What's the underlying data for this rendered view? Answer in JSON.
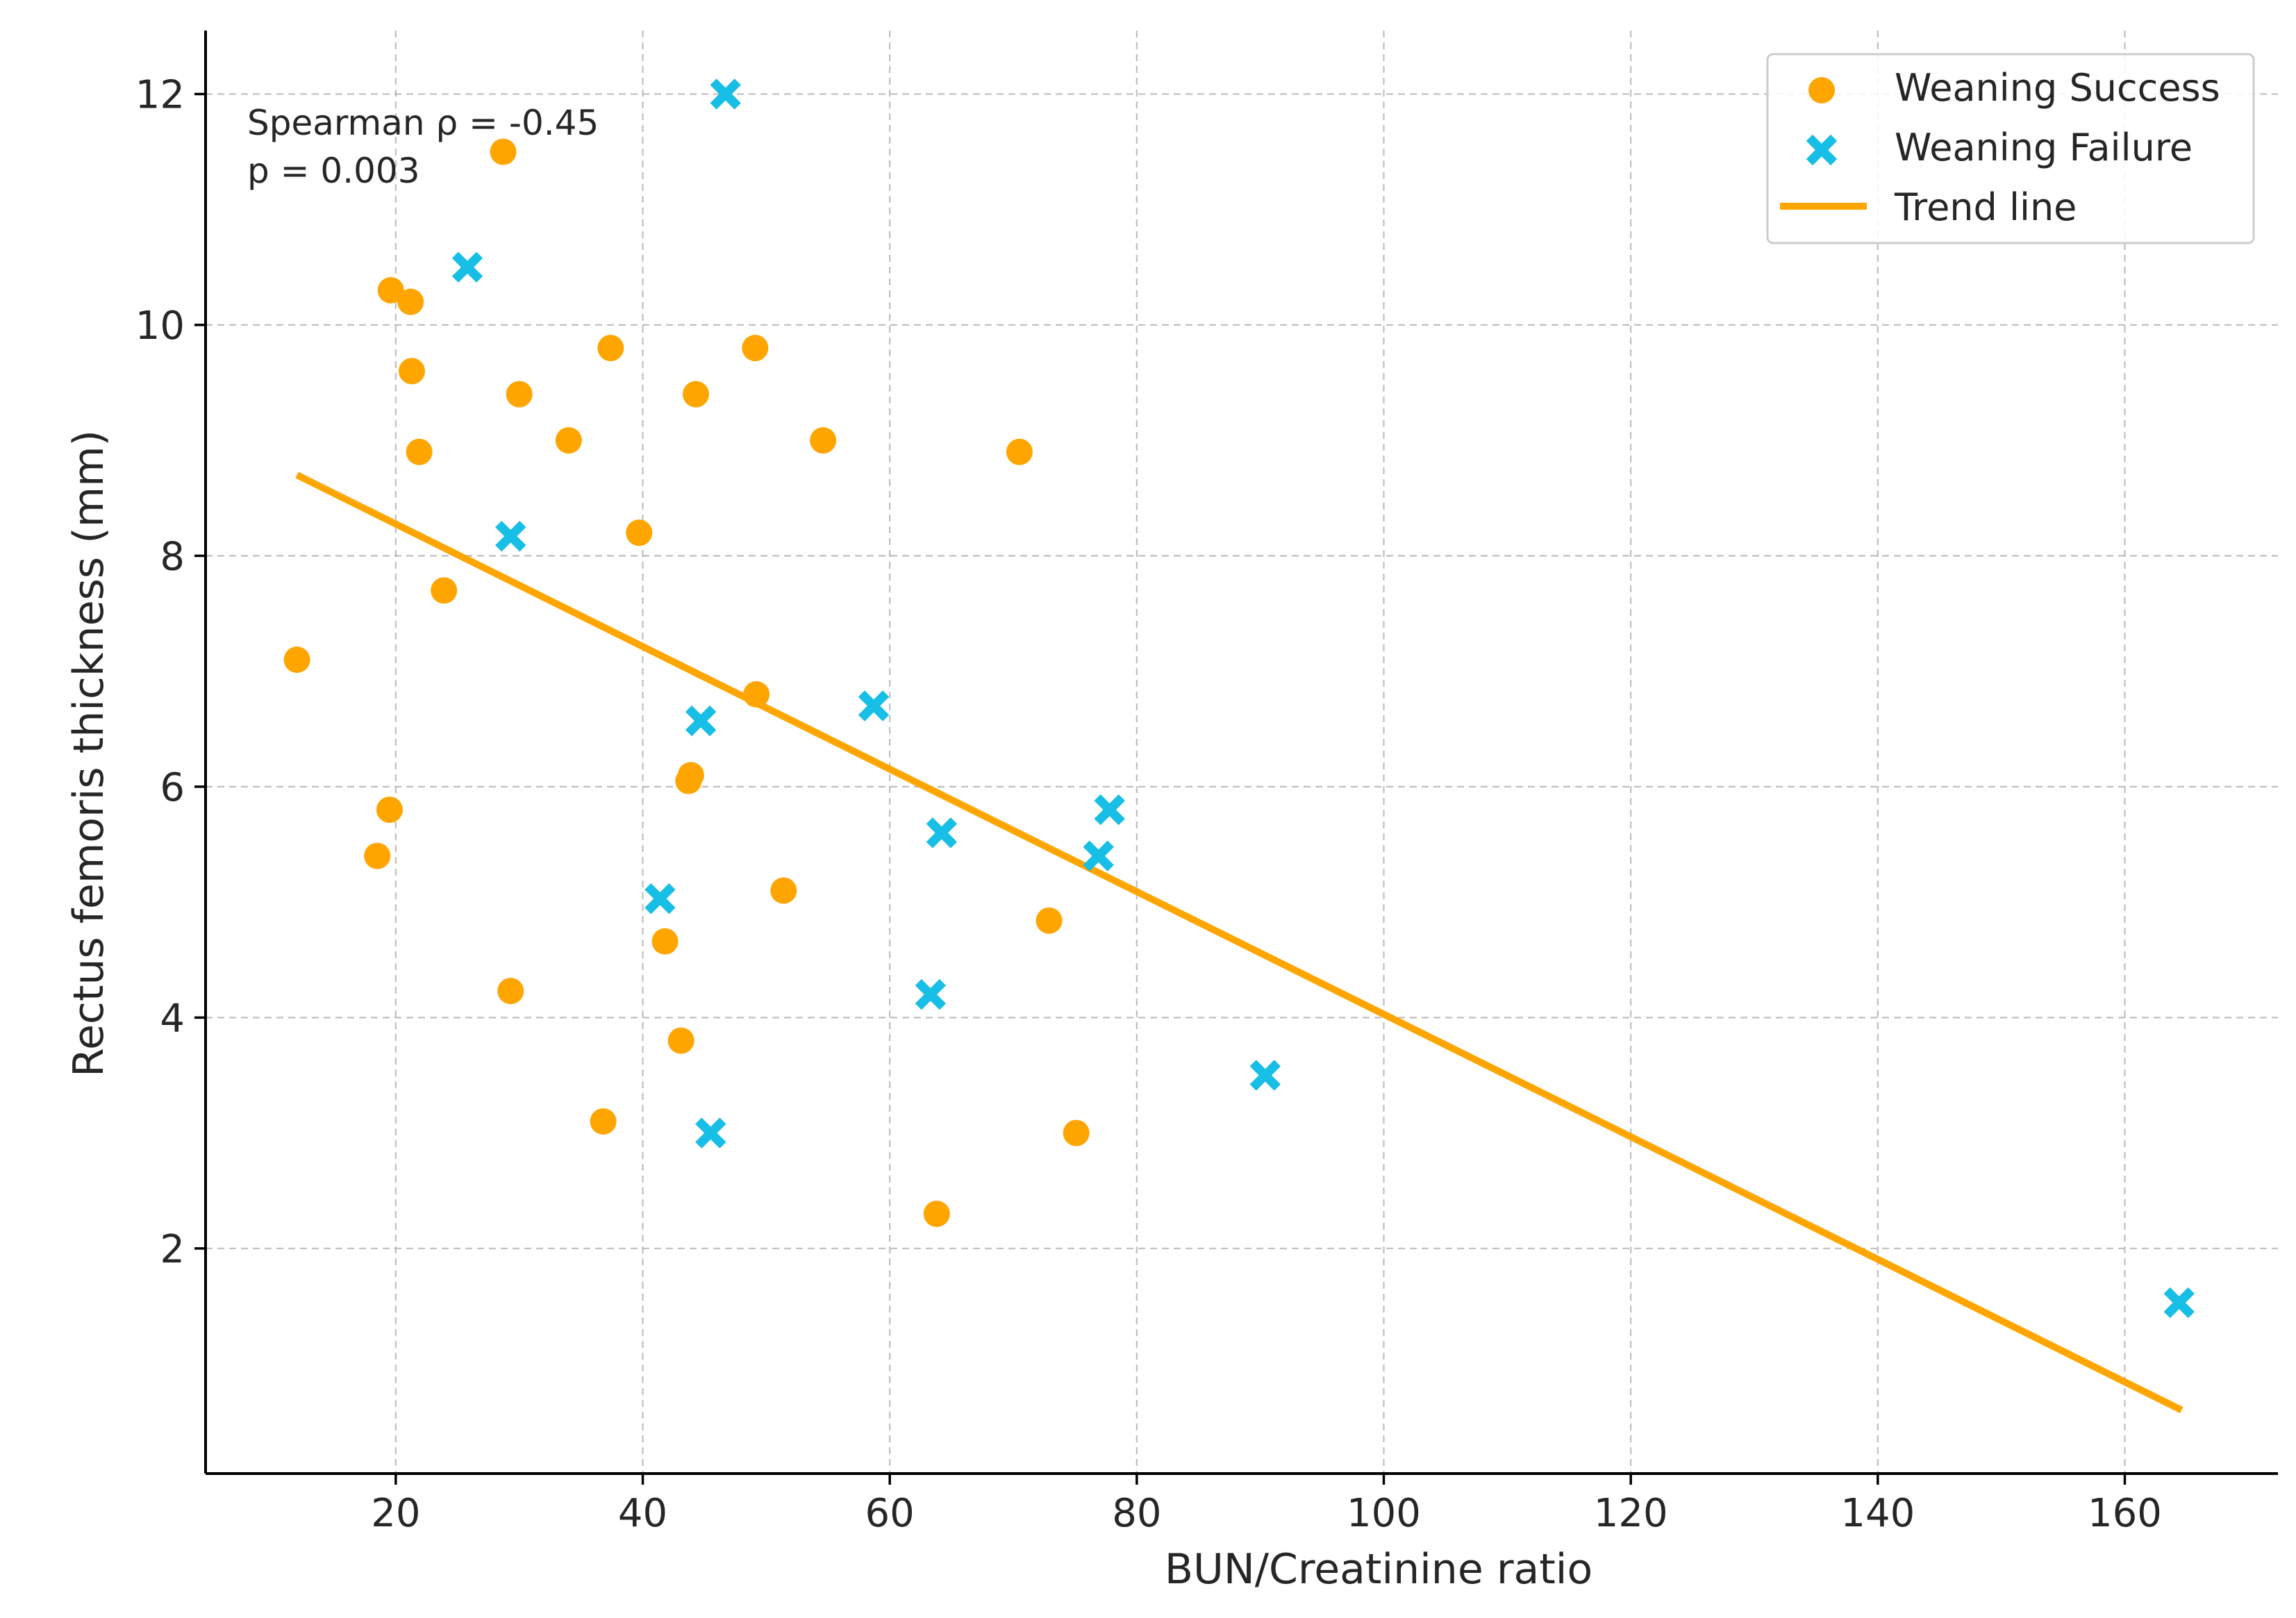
{
  "chart_data": {
    "type": "scatter",
    "title": "",
    "xlabel": "BUN/Creatinine ratio",
    "ylabel": "Rectus femoris thickness (mm)",
    "xlim": [
      4.6,
      172.4
    ],
    "ylim": [
      0.05,
      12.55
    ],
    "x_ticks": [
      20,
      40,
      60,
      80,
      100,
      120,
      140,
      160
    ],
    "y_ticks": [
      2,
      4,
      6,
      8,
      10,
      12
    ],
    "grid": true,
    "legend_position": "top-right",
    "annotation": [
      "Spearman ρ = -0.45",
      "p = 0.003"
    ],
    "colors": {
      "success": "#FFA500",
      "failure": "#17BEE5",
      "trend": "#FFA500",
      "grid": "#b0b0b0"
    },
    "series": [
      {
        "name": "Weaning Success",
        "marker": "circle",
        "points": [
          [
            12.0,
            7.1
          ],
          [
            18.5,
            5.4
          ],
          [
            19.5,
            5.8
          ],
          [
            19.6,
            10.3
          ],
          [
            21.2,
            10.2
          ],
          [
            21.3,
            9.6
          ],
          [
            21.9,
            8.9
          ],
          [
            23.9,
            7.7
          ],
          [
            28.7,
            11.5
          ],
          [
            29.3,
            4.23
          ],
          [
            30.0,
            9.4
          ],
          [
            34.0,
            9.0
          ],
          [
            36.8,
            3.1
          ],
          [
            37.4,
            9.8
          ],
          [
            39.7,
            8.2
          ],
          [
            41.8,
            4.66
          ],
          [
            43.1,
            3.8
          ],
          [
            43.7,
            6.05
          ],
          [
            43.9,
            6.1
          ],
          [
            44.3,
            9.4
          ],
          [
            49.1,
            9.8
          ],
          [
            49.2,
            6.8
          ],
          [
            51.4,
            5.1
          ],
          [
            54.6,
            9.0
          ],
          [
            63.8,
            2.3
          ],
          [
            70.5,
            8.9
          ],
          [
            72.9,
            4.84
          ],
          [
            75.1,
            3.0
          ]
        ]
      },
      {
        "name": "Weaning Failure",
        "marker": "x",
        "points": [
          [
            25.8,
            10.5
          ],
          [
            29.3,
            8.17
          ],
          [
            41.4,
            5.03
          ],
          [
            44.7,
            6.57
          ],
          [
            45.5,
            3.0
          ],
          [
            46.7,
            12.0
          ],
          [
            58.7,
            6.7
          ],
          [
            63.3,
            4.2
          ],
          [
            64.2,
            5.6
          ],
          [
            76.9,
            5.4
          ],
          [
            77.8,
            5.8
          ],
          [
            90.4,
            3.5
          ],
          [
            164.4,
            1.53
          ]
        ]
      },
      {
        "name": "Trend line",
        "type": "line",
        "points": [
          [
            12.0,
            8.7
          ],
          [
            164.6,
            0.6
          ]
        ]
      }
    ]
  }
}
